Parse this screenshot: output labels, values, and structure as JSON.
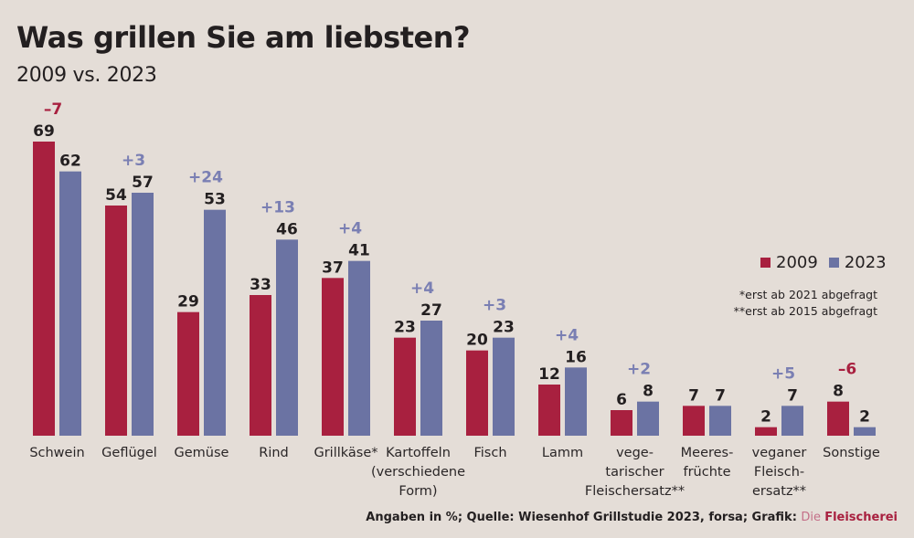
{
  "colors": {
    "series_2009": "#a8203f",
    "series_2023": "#6b73a3",
    "delta_positive": "#7a7fb3",
    "delta_negative": "#a8203f"
  },
  "chart_data": {
    "type": "bar",
    "title": "Was grillen Sie am liebsten?",
    "subtitle": "2009 vs. 2023",
    "xlabel": "",
    "ylabel": "",
    "ylim": [
      0,
      69
    ],
    "grid": false,
    "legend_position": "right",
    "categories": [
      [
        "Schwein"
      ],
      [
        "Geflügel"
      ],
      [
        "Gemüse"
      ],
      [
        "Rind"
      ],
      [
        "Grillkäse*"
      ],
      [
        "Kartoffeln",
        "(verschiedene",
        "Form)"
      ],
      [
        "Fisch"
      ],
      [
        "Lamm"
      ],
      [
        "vege-",
        "tarischer",
        "Fleischersatz**"
      ],
      [
        "Meeres-",
        "früchte"
      ],
      [
        "veganer",
        "Fleisch-",
        "ersatz**"
      ],
      [
        "Sonstige"
      ]
    ],
    "series": [
      {
        "name": "2009",
        "values": [
          69,
          54,
          29,
          33,
          37,
          23,
          20,
          12,
          6,
          7,
          2,
          8
        ]
      },
      {
        "name": "2023",
        "values": [
          62,
          57,
          53,
          46,
          41,
          27,
          23,
          16,
          8,
          7,
          7,
          2
        ]
      }
    ],
    "deltas": [
      "–7",
      "+3",
      "+24",
      "+13",
      "+4",
      "+4",
      "+3",
      "+4",
      "+2",
      "",
      "+5",
      "–6"
    ],
    "notes": [
      "*erst ab 2021 abgefragt",
      "**erst ab 2015 abgefragt"
    ],
    "unit": "%"
  },
  "legend": [
    {
      "label": "2009"
    },
    {
      "label": "2023"
    }
  ],
  "source": {
    "text": "Angaben in %; Quelle: Wiesenhof Grillstudie 2023, forsa; Grafik: ",
    "brand_light": "Die ",
    "brand": "Fleischerei"
  }
}
